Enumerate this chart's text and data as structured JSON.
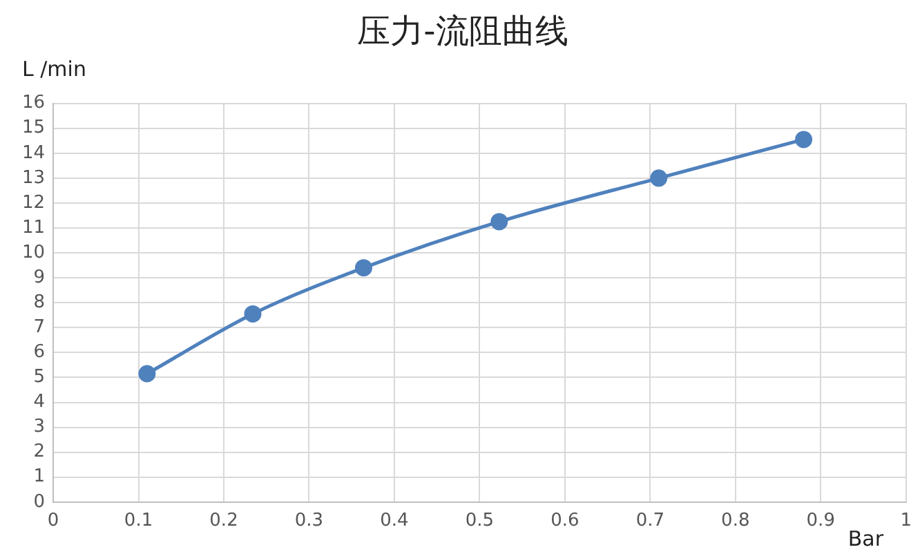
{
  "chart_data": {
    "type": "line",
    "title": "压力-流阻曲线",
    "xlabel": "Bar",
    "ylabel": "L /min",
    "x": [
      0.11,
      0.234,
      0.364,
      0.523,
      0.71,
      0.88
    ],
    "series": [
      {
        "color": "#4f81bd",
        "values": [
          5.15,
          7.55,
          9.4,
          11.25,
          13.0,
          14.55
        ]
      }
    ],
    "xlim": [
      0,
      1
    ],
    "xticks": [
      0,
      0.1,
      0.2,
      0.3,
      0.4,
      0.5,
      0.6,
      0.7,
      0.8,
      0.9,
      1
    ],
    "ylim": [
      0,
      16
    ],
    "yticks": [
      0,
      1,
      2,
      3,
      4,
      5,
      6,
      7,
      8,
      9,
      10,
      11,
      12,
      13,
      14,
      15,
      16
    ],
    "grid": true,
    "legend": false,
    "marker": "circle",
    "line_style": "solid"
  }
}
